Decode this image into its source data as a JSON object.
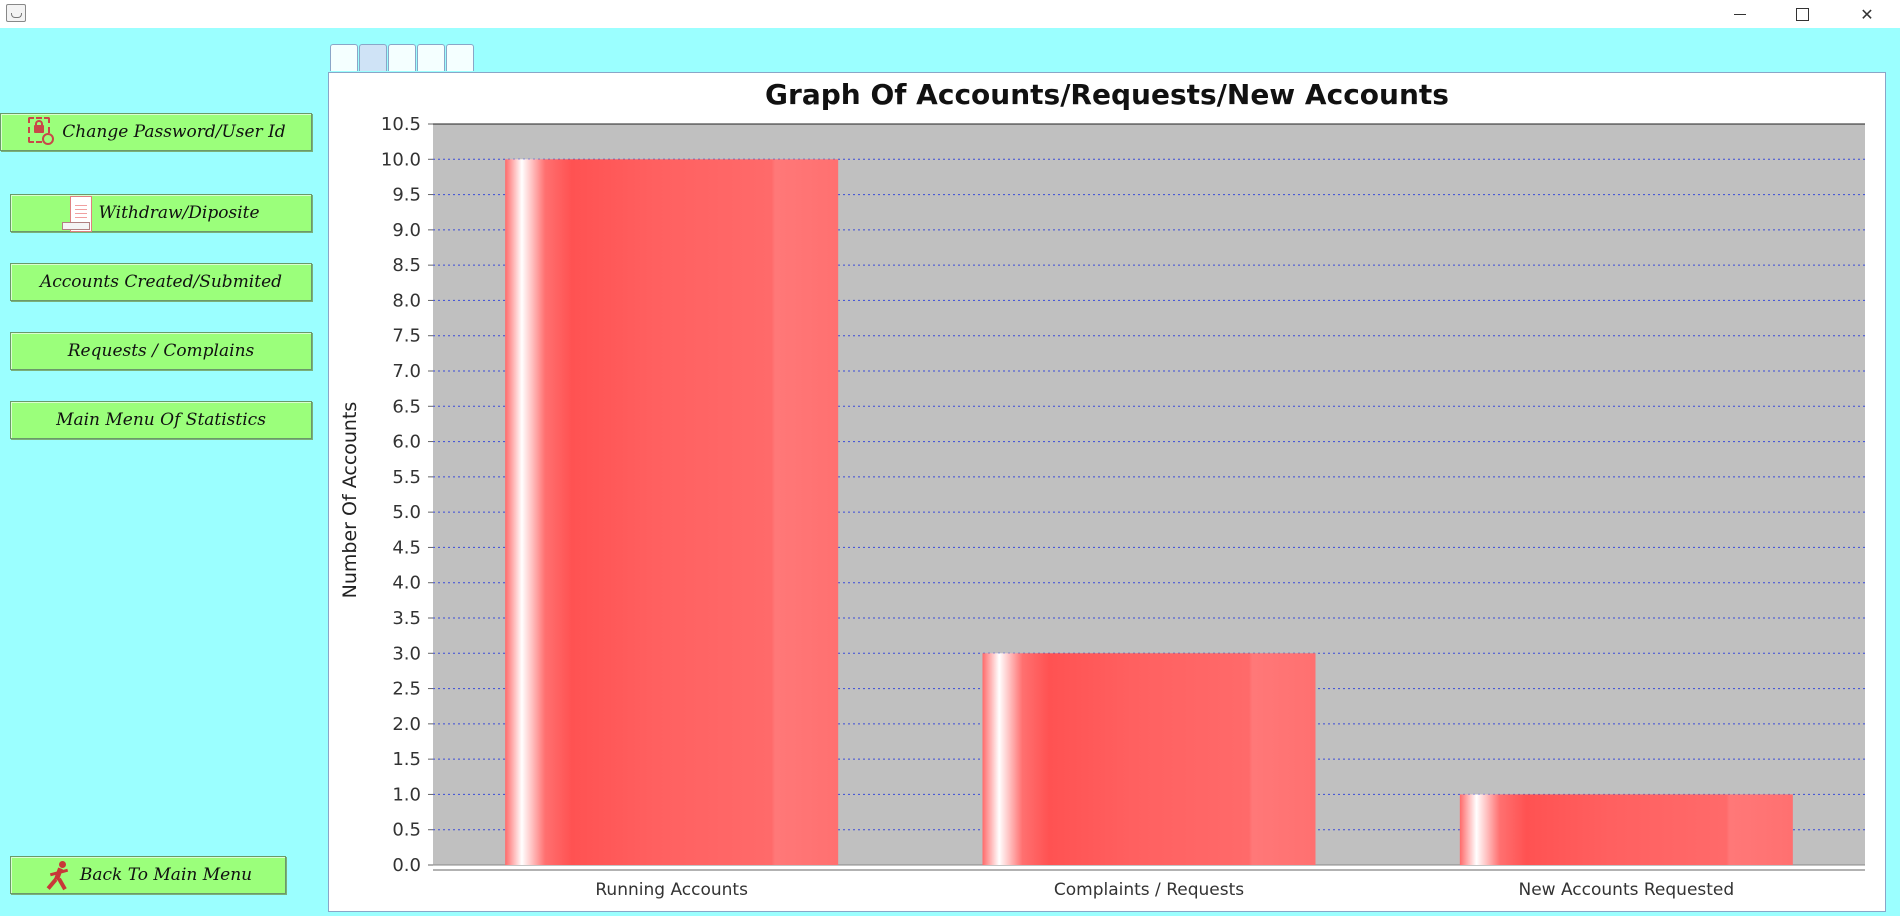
{
  "window": {
    "minimize_icon": "minimize-icon",
    "maximize_icon": "maximize-icon",
    "close_icon": "close-icon"
  },
  "sidebar": {
    "change_password": {
      "label": "Change Password/User Id",
      "icon": "lock-key-icon"
    },
    "withdraw": {
      "label": "Withdraw/Diposite",
      "icon": "paper-tray-icon"
    },
    "accounts_created": {
      "label": "Accounts Created/Submited"
    },
    "requests": {
      "label": "Requests / Complains"
    },
    "main_menu_stats": {
      "label": "Main Menu Of Statistics"
    },
    "back": {
      "label": "Back To Main Menu",
      "icon": "running-person-icon"
    }
  },
  "tabs": [
    {
      "active": false
    },
    {
      "active": true
    },
    {
      "active": false
    },
    {
      "active": false
    },
    {
      "active": false
    }
  ],
  "colors": {
    "background": "#9bffff",
    "button": "#9bff7b",
    "plot_bg": "#c0c0c0",
    "bar": "#ff5555",
    "grid": "#3a4bd8"
  },
  "chart_data": {
    "type": "bar",
    "title": "Graph Of Accounts/Requests/New Accounts",
    "xlabel": "",
    "ylabel": "Number Of Accounts",
    "categories": [
      "Running Accounts",
      "Complaints / Requests",
      "New Accounts Requested"
    ],
    "values": [
      10,
      3,
      1
    ],
    "ylim": [
      0,
      10.5
    ],
    "ytick_step": 0.5,
    "grid": true,
    "legend": false
  }
}
